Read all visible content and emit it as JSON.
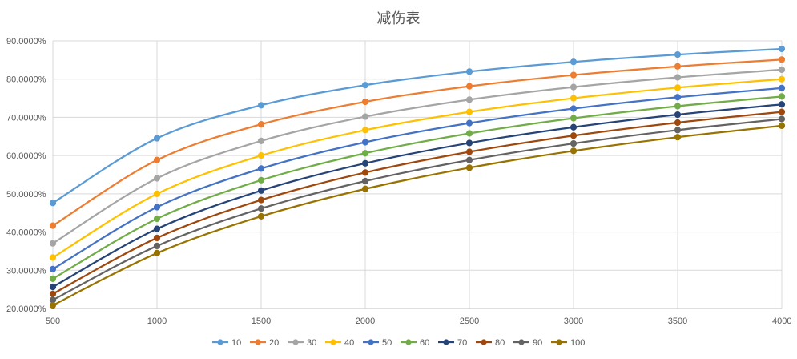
{
  "chart_data": {
    "type": "line",
    "title": "减伤表",
    "x": [
      500,
      1000,
      1500,
      2000,
      2500,
      3000,
      3500,
      4000
    ],
    "ylim": [
      0.2,
      0.9
    ],
    "yticks": [
      0.2,
      0.3,
      0.4,
      0.5,
      0.6,
      0.7,
      0.8,
      0.9
    ],
    "ytick_labels": [
      "20.0000%",
      "30.0000%",
      "40.0000%",
      "50.0000%",
      "60.0000%",
      "70.0000%",
      "80.0000%",
      "90.0000%"
    ],
    "xtick_labels": [
      "500",
      "1000",
      "1500",
      "2000",
      "2500",
      "3000",
      "3500",
      "4000"
    ],
    "grid": true,
    "legend_position": "bottom",
    "series": [
      {
        "name": "10",
        "color": "#5B9BD5",
        "values": [
          0.4762,
          0.6452,
          0.7317,
          0.7843,
          0.8197,
          0.8451,
          0.8642,
          0.8791
        ]
      },
      {
        "name": "20",
        "color": "#ED7D31",
        "values": [
          0.4167,
          0.5882,
          0.6818,
          0.7407,
          0.7813,
          0.8108,
          0.8333,
          0.8511
        ]
      },
      {
        "name": "30",
        "color": "#A5A5A5",
        "values": [
          0.3704,
          0.5405,
          0.6383,
          0.7018,
          0.7463,
          0.7792,
          0.8046,
          0.8247
        ]
      },
      {
        "name": "40",
        "color": "#FFC000",
        "values": [
          0.3333,
          0.5,
          0.6,
          0.6667,
          0.7143,
          0.75,
          0.7778,
          0.8
        ]
      },
      {
        "name": "50",
        "color": "#4472C4",
        "values": [
          0.303,
          0.4651,
          0.566,
          0.6349,
          0.6849,
          0.7229,
          0.7527,
          0.7767
        ]
      },
      {
        "name": "60",
        "color": "#70AD47",
        "values": [
          0.2778,
          0.4348,
          0.5357,
          0.6061,
          0.6579,
          0.6977,
          0.7292,
          0.7547
        ]
      },
      {
        "name": "70",
        "color": "#264478",
        "values": [
          0.2564,
          0.4082,
          0.5085,
          0.5797,
          0.6329,
          0.6742,
          0.7071,
          0.7339
        ]
      },
      {
        "name": "80",
        "color": "#9E480E",
        "values": [
          0.2381,
          0.3846,
          0.4839,
          0.5556,
          0.6098,
          0.6522,
          0.6863,
          0.7143
        ]
      },
      {
        "name": "90",
        "color": "#636363",
        "values": [
          0.2222,
          0.3636,
          0.4615,
          0.5333,
          0.5882,
          0.6316,
          0.6667,
          0.6957
        ]
      },
      {
        "name": "100",
        "color": "#997300",
        "values": [
          0.2083,
          0.3448,
          0.4412,
          0.5128,
          0.5682,
          0.6122,
          0.6481,
          0.678
        ]
      }
    ]
  }
}
